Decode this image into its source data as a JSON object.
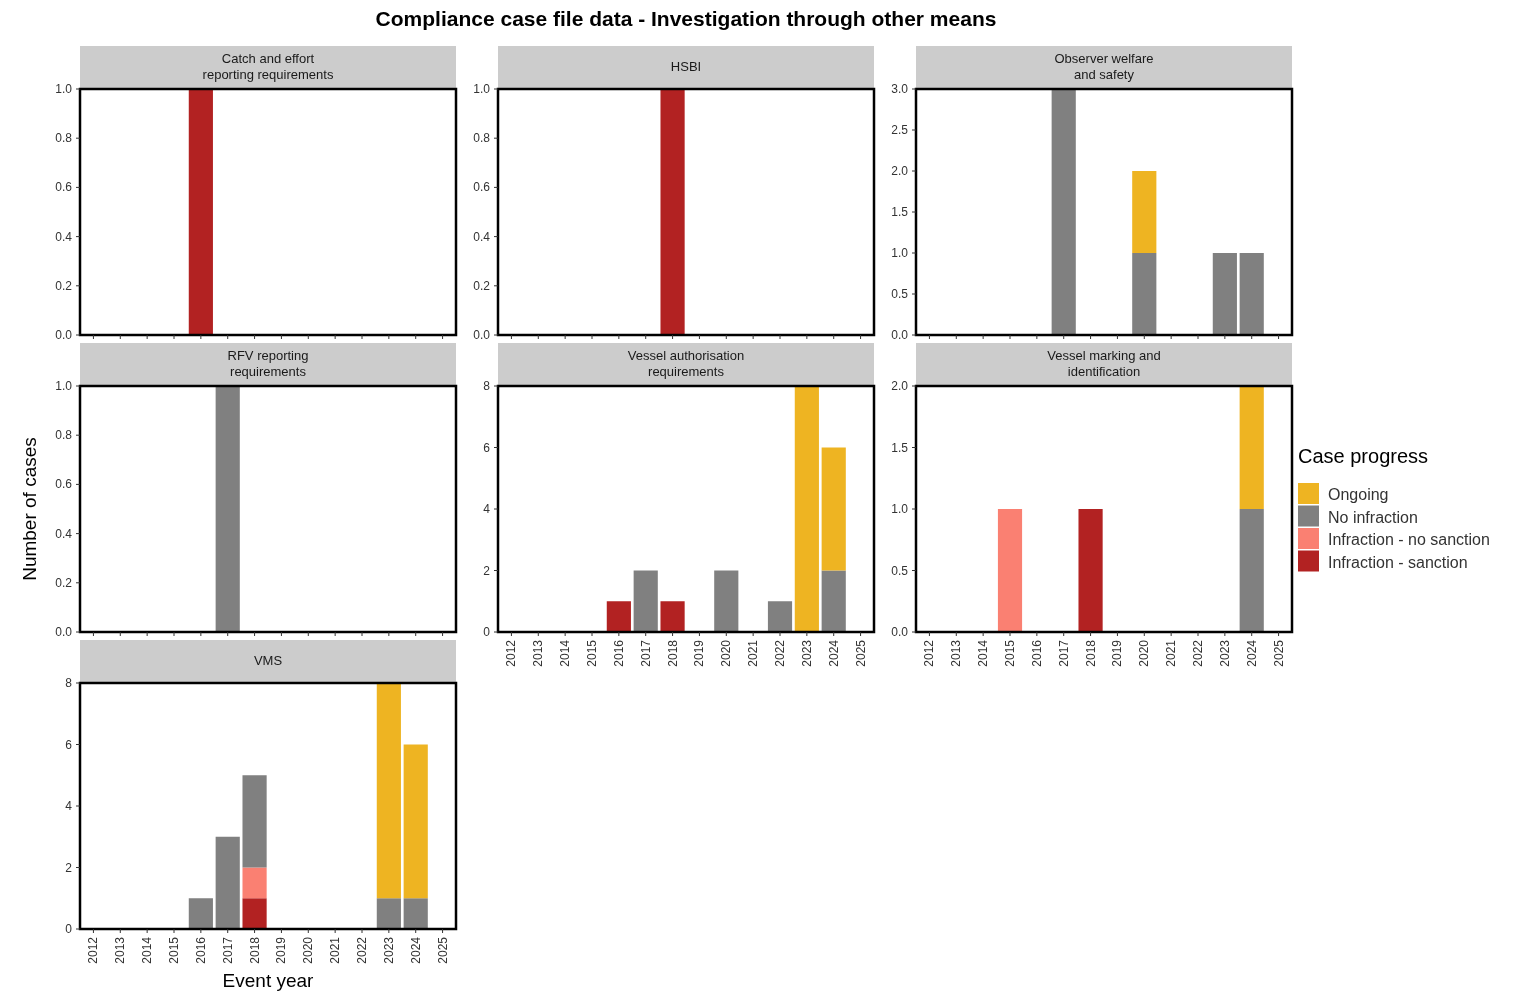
{
  "chart_data": [
    {
      "type": "bar",
      "stacked": true,
      "title": "Catch and effort\nreporting requirements",
      "annotations": [
        "Compliance case file data - Investigation through other means"
      ],
      "tick_labels": "y",
      "categories": [
        "2012",
        "2013",
        "2014",
        "2015",
        "2016",
        "2017",
        "2018",
        "2019",
        "2020",
        "2021",
        "2022",
        "2023",
        "2024",
        "2025"
      ],
      "ylim": [
        0,
        1
      ],
      "yticks": [
        {
          "value": 0,
          "label": "0.0"
        },
        {
          "value": 0.2,
          "label": "0.2"
        },
        {
          "value": 0.4,
          "label": "0.4"
        },
        {
          "value": 0.6,
          "label": "0.6"
        },
        {
          "value": 0.8,
          "label": "0.8"
        },
        {
          "value": 1,
          "label": "1.0"
        }
      ],
      "grid": false,
      "series": [
        {
          "color": "#b22222",
          "values": [
            null,
            null,
            null,
            null,
            1,
            null,
            null,
            null,
            null,
            null,
            null,
            null,
            null,
            null
          ]
        }
      ]
    },
    {
      "type": "bar",
      "stacked": true,
      "title": "HSBI",
      "tick_labels": "y",
      "categories": [
        "2012",
        "2013",
        "2014",
        "2015",
        "2016",
        "2017",
        "2018",
        "2019",
        "2020",
        "2021",
        "2022",
        "2023",
        "2024",
        "2025"
      ],
      "ylim": [
        0,
        1
      ],
      "yticks": [
        {
          "value": 0,
          "label": "0.0"
        },
        {
          "value": 0.2,
          "label": "0.2"
        },
        {
          "value": 0.4,
          "label": "0.4"
        },
        {
          "value": 0.6,
          "label": "0.6"
        },
        {
          "value": 0.8,
          "label": "0.8"
        },
        {
          "value": 1,
          "label": "1.0"
        }
      ],
      "series": [
        {
          "color": "#b22222",
          "values": [
            null,
            null,
            null,
            null,
            null,
            null,
            1,
            null,
            null,
            null,
            null,
            null,
            null,
            null
          ]
        }
      ]
    },
    {
      "type": "bar",
      "stacked": true,
      "title": "Observer welfare\nand safety",
      "tick_labels": "y",
      "categories": [
        "2012",
        "2013",
        "2014",
        "2015",
        "2016",
        "2017",
        "2018",
        "2019",
        "2020",
        "2021",
        "2022",
        "2023",
        "2024",
        "2025"
      ],
      "ylim": [
        0,
        3
      ],
      "yticks": [
        {
          "value": 0,
          "label": "0.0"
        },
        {
          "value": 0.5,
          "label": "0.5"
        },
        {
          "value": 1,
          "label": "1.0"
        },
        {
          "value": 1.5,
          "label": "1.5"
        },
        {
          "value": 2,
          "label": "2.0"
        },
        {
          "value": 2.5,
          "label": "2.5"
        },
        {
          "value": 3,
          "label": "3.0"
        }
      ],
      "series": [
        {
          "color": "#808080",
          "values": [
            null,
            null,
            null,
            null,
            null,
            3,
            null,
            null,
            1,
            null,
            null,
            1,
            1,
            null
          ]
        },
        {
          "color": "#eeb422",
          "values": [
            null,
            null,
            null,
            null,
            null,
            null,
            null,
            null,
            1,
            null,
            null,
            null,
            null,
            null
          ]
        }
      ]
    },
    {
      "type": "bar",
      "stacked": true,
      "title": "RFV reporting\nrequirements",
      "ylabel": "Number of cases",
      "tick_labels": "y",
      "categories": [
        "2012",
        "2013",
        "2014",
        "2015",
        "2016",
        "2017",
        "2018",
        "2019",
        "2020",
        "2021",
        "2022",
        "2023",
        "2024",
        "2025"
      ],
      "ylim": [
        0,
        1
      ],
      "yticks": [
        {
          "value": 0,
          "label": "0.0"
        },
        {
          "value": 0.2,
          "label": "0.2"
        },
        {
          "value": 0.4,
          "label": "0.4"
        },
        {
          "value": 0.6,
          "label": "0.6"
        },
        {
          "value": 0.8,
          "label": "0.8"
        },
        {
          "value": 1,
          "label": "1.0"
        }
      ],
      "series": [
        {
          "color": "#808080",
          "values": [
            null,
            null,
            null,
            null,
            null,
            1,
            null,
            null,
            null,
            null,
            null,
            null,
            null,
            null
          ]
        }
      ]
    },
    {
      "type": "bar",
      "stacked": true,
      "title": "Vessel authorisation\nrequirements",
      "categories": [
        "2012",
        "2013",
        "2014",
        "2015",
        "2016",
        "2017",
        "2018",
        "2019",
        "2020",
        "2021",
        "2022",
        "2023",
        "2024",
        "2025"
      ],
      "ylim": [
        0,
        8
      ],
      "yticks": [
        0,
        2,
        4,
        6,
        8
      ],
      "series": [
        {
          "color": "#b22222",
          "values": [
            null,
            null,
            null,
            null,
            1,
            null,
            1,
            null,
            null,
            null,
            null,
            null,
            null,
            null
          ]
        },
        {
          "color": "#808080",
          "values": [
            null,
            null,
            null,
            null,
            null,
            2,
            null,
            null,
            2,
            null,
            1,
            null,
            2,
            null
          ]
        },
        {
          "color": "#eeb422",
          "values": [
            null,
            null,
            null,
            null,
            null,
            null,
            null,
            null,
            null,
            null,
            null,
            8,
            4,
            null
          ]
        }
      ]
    },
    {
      "type": "bar",
      "stacked": true,
      "title": "Vessel marking and\nidentification",
      "legend": "right",
      "legend_title": "Case progress",
      "categories": [
        "2012",
        "2013",
        "2014",
        "2015",
        "2016",
        "2017",
        "2018",
        "2019",
        "2020",
        "2021",
        "2022",
        "2023",
        "2024",
        "2025"
      ],
      "ylim": [
        0,
        2
      ],
      "yticks": [
        {
          "value": 0,
          "label": "0.0"
        },
        {
          "value": 0.5,
          "label": "0.5"
        },
        {
          "value": 1,
          "label": "1.0"
        },
        {
          "value": 1.5,
          "label": "1.5"
        },
        {
          "value": 2,
          "label": "2.0"
        }
      ],
      "series": [
        {
          "name": "Infraction - sanction",
          "color": "#b22222",
          "values": [
            null,
            null,
            null,
            null,
            null,
            null,
            1,
            null,
            null,
            null,
            null,
            null,
            null,
            null
          ]
        },
        {
          "name": "Infraction - no sanction",
          "color": "#fa8072",
          "values": [
            null,
            null,
            null,
            1,
            null,
            null,
            null,
            null,
            null,
            null,
            null,
            null,
            null,
            null
          ]
        },
        {
          "name": "No infraction",
          "color": "#808080",
          "values": [
            null,
            null,
            null,
            null,
            null,
            null,
            null,
            null,
            null,
            null,
            null,
            null,
            1,
            null
          ]
        },
        {
          "name": "Ongoing",
          "color": "#eeb422",
          "values": [
            null,
            null,
            null,
            null,
            null,
            null,
            null,
            null,
            null,
            null,
            null,
            null,
            1,
            null
          ]
        }
      ]
    },
    {
      "type": "bar",
      "stacked": true,
      "title": "VMS",
      "xlabel": "Event year",
      "categories": [
        "2012",
        "2013",
        "2014",
        "2015",
        "2016",
        "2017",
        "2018",
        "2019",
        "2020",
        "2021",
        "2022",
        "2023",
        "2024",
        "2025"
      ],
      "ylim": [
        0,
        8
      ],
      "yticks": [
        0,
        2,
        4,
        6,
        8
      ],
      "series": [
        {
          "color": "#b22222",
          "values": [
            null,
            null,
            null,
            null,
            null,
            null,
            1,
            null,
            null,
            null,
            null,
            null,
            null,
            null
          ]
        },
        {
          "color": "#fa8072",
          "values": [
            null,
            null,
            null,
            null,
            null,
            null,
            1,
            null,
            null,
            null,
            null,
            null,
            null,
            null
          ]
        },
        {
          "color": "#808080",
          "values": [
            null,
            null,
            null,
            null,
            1,
            3,
            3,
            null,
            null,
            null,
            null,
            1,
            1,
            null
          ]
        },
        {
          "color": "#eeb422",
          "values": [
            null,
            null,
            null,
            null,
            null,
            null,
            null,
            null,
            null,
            null,
            null,
            7,
            5,
            null
          ]
        }
      ]
    }
  ]
}
